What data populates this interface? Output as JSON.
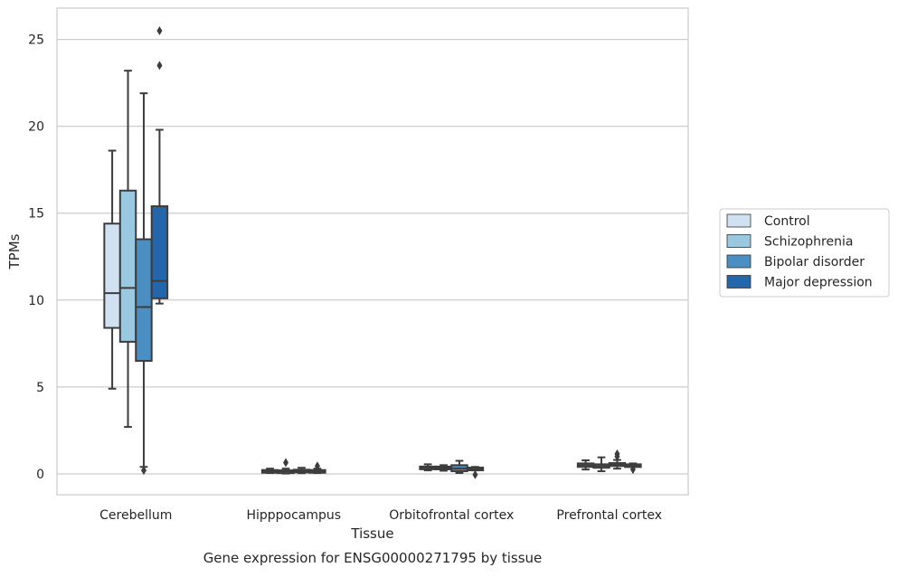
{
  "chart_data": {
    "type": "boxplot",
    "title": "",
    "caption": "Gene expression for ENSG00000271795 by tissue",
    "xlabel": "Tissue",
    "ylabel": "TPMs",
    "ylim": [
      -1.2,
      26.8
    ],
    "yticks": [
      0,
      5,
      10,
      15,
      20,
      25
    ],
    "grid": "horizontal",
    "legend_position": "right",
    "categories": [
      "Cerebellum",
      "Hipppocampus",
      "Orbitofrontal cortex",
      "Prefrontal cortex"
    ],
    "series": [
      {
        "name": "Control",
        "color": "#d0e1f2",
        "boxes": [
          {
            "whislo": 4.9,
            "q1": 8.4,
            "med": 10.4,
            "q3": 14.4,
            "whishi": 18.6,
            "fliers": []
          },
          {
            "whislo": 0.05,
            "q1": 0.1,
            "med": 0.15,
            "q3": 0.22,
            "whishi": 0.3,
            "fliers": []
          },
          {
            "whislo": 0.2,
            "q1": 0.28,
            "med": 0.35,
            "q3": 0.42,
            "whishi": 0.55,
            "fliers": []
          },
          {
            "whislo": 0.25,
            "q1": 0.4,
            "med": 0.5,
            "q3": 0.6,
            "whishi": 0.78,
            "fliers": []
          }
        ]
      },
      {
        "name": "Schizophrenia",
        "color": "#9ac8e0",
        "boxes": [
          {
            "whislo": 2.7,
            "q1": 7.6,
            "med": 10.7,
            "q3": 16.3,
            "whishi": 23.2,
            "fliers": []
          },
          {
            "whislo": 0.02,
            "q1": 0.08,
            "med": 0.14,
            "q3": 0.2,
            "whishi": 0.3,
            "fliers": [
              0.65
            ]
          },
          {
            "whislo": 0.18,
            "q1": 0.26,
            "med": 0.34,
            "q3": 0.42,
            "whishi": 0.5,
            "fliers": []
          },
          {
            "whislo": 0.15,
            "q1": 0.35,
            "med": 0.45,
            "q3": 0.55,
            "whishi": 0.95,
            "fliers": []
          }
        ]
      },
      {
        "name": "Bipolar disorder",
        "color": "#4b8fc2",
        "boxes": [
          {
            "whislo": 0.4,
            "q1": 6.5,
            "med": 9.6,
            "q3": 13.5,
            "whishi": 21.9,
            "fliers": [
              0.2
            ]
          },
          {
            "whislo": 0.04,
            "q1": 0.1,
            "med": 0.16,
            "q3": 0.24,
            "whishi": 0.35,
            "fliers": []
          },
          {
            "whislo": 0.05,
            "q1": 0.15,
            "med": 0.3,
            "q3": 0.5,
            "whishi": 0.75,
            "fliers": []
          },
          {
            "whislo": 0.3,
            "q1": 0.45,
            "med": 0.52,
            "q3": 0.62,
            "whishi": 0.8,
            "fliers": [
              1.0,
              1.15
            ]
          }
        ]
      },
      {
        "name": "Major depression",
        "color": "#2366ab",
        "boxes": [
          {
            "whislo": 9.8,
            "q1": 10.1,
            "med": 11.1,
            "q3": 15.4,
            "whishi": 19.8,
            "fliers": [
              23.5,
              25.5
            ]
          },
          {
            "whislo": 0.05,
            "q1": 0.1,
            "med": 0.15,
            "q3": 0.22,
            "whishi": 0.3,
            "fliers": [
              0.45
            ]
          },
          {
            "whislo": 0.2,
            "q1": 0.26,
            "med": 0.3,
            "q3": 0.36,
            "whishi": 0.4,
            "fliers": [
              -0.05
            ]
          },
          {
            "whislo": 0.4,
            "q1": 0.44,
            "med": 0.5,
            "q3": 0.55,
            "whishi": 0.6,
            "fliers": [
              0.25
            ]
          }
        ]
      }
    ]
  }
}
